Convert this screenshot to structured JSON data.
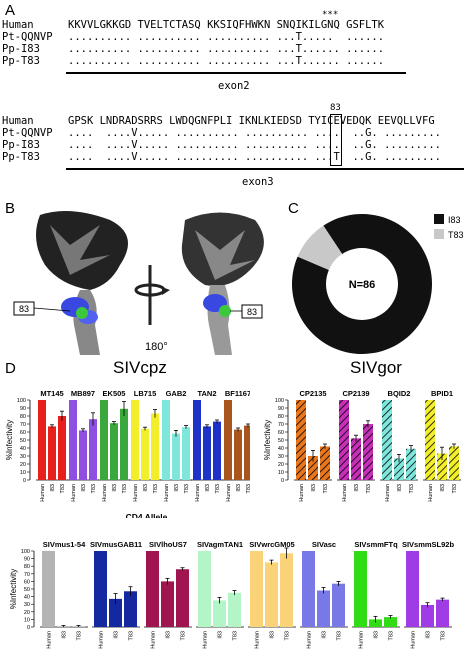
{
  "panels": {
    "A": "A",
    "B": "B",
    "C": "C",
    "D": "D"
  },
  "alignment": {
    "block1": {
      "marker": "***",
      "rows": [
        {
          "name": "Human",
          "seq": "KKVVLGKKGD TVELTCTASQ KKSIQFHWKN SNQIKILGNQ GSFLTK"
        },
        {
          "name": "Pt-QQNVP",
          "seq": ".......... .......... .......... ...T.....  ......"
        },
        {
          "name": "Pp-I83",
          "seq": ".......... .......... .......... ...T...... ......"
        },
        {
          "name": "Pp-T83",
          "seq": ".......... .......... .......... ...T...... ......"
        }
      ],
      "exon": "exon2"
    },
    "block2": {
      "marker": "83",
      "rows": [
        {
          "name": "Human",
          "seq": "GPSK LNDRADSRRS LWDQGNFPLI IKNLKIEDSD TYICEVEDQK EEVQLLVFG"
        },
        {
          "name": "Pt-QQNVP",
          "seq": "....  ....V..... .......... .......... ....  ..G. ........."
        },
        {
          "name": "Pp-I83",
          "seq": "....  ....V..... .......... .......... ....  ..G. ........."
        },
        {
          "name": "Pp-T83",
          "seq": "....  ....V..... .......... .......... ...T  ..G. ........."
        }
      ],
      "exon": "exon3"
    }
  },
  "structure": {
    "label_left": "83",
    "label_right": "83",
    "rotation": "180°"
  },
  "colors": {
    "I83": "#111111",
    "T83": "#c8c8c8",
    "accent_red": "#e8201c"
  },
  "donut": {
    "center_label": "N=86",
    "legend": [
      "I83",
      "T83"
    ]
  },
  "charts": {
    "title_cpz": "SIVcpz",
    "title_gor": "SIVgor",
    "ylabel": "%Infectivity",
    "xlabel": "CD4 Allele",
    "ticks": [
      "0",
      "10",
      "20",
      "30",
      "40",
      "50",
      "60",
      "70",
      "80",
      "90",
      "100"
    ],
    "categories": [
      "Human",
      "I83",
      "T83"
    ]
  },
  "chart_data": [
    {
      "type": "pie",
      "labels": [
        "I83",
        "T83"
      ],
      "values": [
        78,
        8
      ],
      "colors": [
        "#111111",
        "#c8c8c8"
      ],
      "center": "N=86"
    },
    {
      "type": "bar",
      "title": "SIVcpz",
      "xlabel": "CD4 Allele",
      "ylabel": "%Infectivity",
      "ylim": [
        0,
        100
      ],
      "categories": [
        "Human",
        "I83",
        "T83"
      ],
      "series": [
        {
          "name": "MT145",
          "color": "#e8201c",
          "values": [
            100,
            67,
            80
          ],
          "errors": [
            0,
            2,
            6
          ]
        },
        {
          "name": "MB897",
          "color": "#8f4fe0",
          "values": [
            100,
            62,
            76
          ],
          "errors": [
            0,
            2,
            8
          ]
        },
        {
          "name": "EK505",
          "color": "#3aa83c",
          "values": [
            100,
            71,
            89
          ],
          "errors": [
            0,
            2,
            9
          ]
        },
        {
          "name": "LB715",
          "color": "#f2ee2a",
          "values": [
            100,
            64,
            83
          ],
          "errors": [
            0,
            2,
            5
          ]
        },
        {
          "name": "GAB2",
          "color": "#7fe6dc",
          "values": [
            100,
            58,
            66
          ],
          "errors": [
            0,
            4,
            2
          ]
        },
        {
          "name": "TAN2",
          "color": "#1c32c8",
          "values": [
            100,
            67,
            73
          ],
          "errors": [
            0,
            2,
            2
          ]
        },
        {
          "name": "BF1167",
          "color": "#a8561e",
          "values": [
            100,
            63,
            68
          ],
          "errors": [
            0,
            2,
            2
          ]
        }
      ]
    },
    {
      "type": "bar",
      "title": "SIVgor",
      "xlabel": "CD4 Allele",
      "ylabel": "%Infectivity",
      "ylim": [
        0,
        100
      ],
      "categories": [
        "Human",
        "I83",
        "T83"
      ],
      "series": [
        {
          "name": "CP2135",
          "color": "#e8761c",
          "values": [
            100,
            30,
            42
          ],
          "errors": [
            0,
            7,
            3
          ]
        },
        {
          "name": "CP2139",
          "color": "#c62fb8",
          "values": [
            100,
            52,
            70
          ],
          "errors": [
            0,
            4,
            4
          ]
        },
        {
          "name": "BQID2",
          "color": "#7fe6dc",
          "values": [
            100,
            27,
            39
          ],
          "errors": [
            0,
            5,
            4
          ]
        },
        {
          "name": "BPID1",
          "color": "#f2ee2a",
          "values": [
            100,
            33,
            42
          ],
          "errors": [
            0,
            8,
            3
          ]
        }
      ]
    },
    {
      "type": "bar",
      "xlabel": "CD4 Allele",
      "ylabel": "%Infectivity",
      "ylim": [
        0,
        100
      ],
      "categories": [
        "Human",
        "I83",
        "T83"
      ],
      "series": [
        {
          "name": "SIVmus1-54",
          "color": "#b4b4b4",
          "values": [
            100,
            1,
            1
          ],
          "errors": [
            0,
            1,
            1
          ]
        },
        {
          "name": "SIVmusGAB11",
          "color": "#1428a0",
          "values": [
            100,
            37,
            47
          ],
          "errors": [
            0,
            7,
            6
          ]
        },
        {
          "name": "SIVlhoUS7",
          "color": "#a01450",
          "values": [
            100,
            60,
            76
          ],
          "errors": [
            0,
            4,
            2
          ]
        },
        {
          "name": "SIVagmTAN1",
          "color": "#b4f5c8",
          "values": [
            100,
            35,
            45
          ],
          "errors": [
            0,
            4,
            3
          ]
        },
        {
          "name": "SIVwrcGM05",
          "color": "#fad278",
          "values": [
            100,
            85,
            97
          ],
          "errors": [
            0,
            3,
            7
          ]
        },
        {
          "name": "SIVasc",
          "color": "#7878e6",
          "values": [
            100,
            48,
            57
          ],
          "errors": [
            0,
            4,
            3
          ]
        },
        {
          "name": "SIVsmmFTq",
          "color": "#32dc14",
          "values": [
            100,
            10,
            13
          ],
          "errors": [
            0,
            4,
            2
          ]
        },
        {
          "name": "SIVsmmSL92b",
          "color": "#a03ce6",
          "values": [
            100,
            29,
            36
          ],
          "errors": [
            0,
            3,
            2
          ]
        }
      ]
    }
  ]
}
